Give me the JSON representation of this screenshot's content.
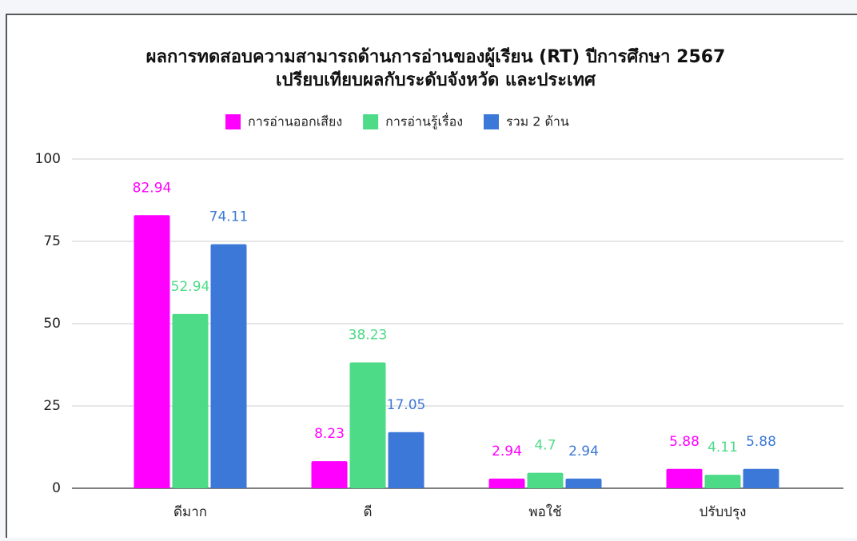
{
  "chart_data": {
    "type": "bar",
    "title": "ผลการทดสอบความสามารถด้านการอ่านของผู้เรียน (RT) ปีการศึกษา 2567",
    "subtitle": "เปรียบเทียบผลกับระดับจังหวัด และประเทศ",
    "categories": [
      "ดีมาก",
      "ดี",
      "พอใช้",
      "ปรับปรุง"
    ],
    "series": [
      {
        "name": "การอ่านออกเสียง",
        "color": "#ff00ff",
        "values": [
          82.94,
          8.23,
          2.94,
          5.88
        ]
      },
      {
        "name": "การอ่านรู้เรื่อง",
        "color": "#4ddb88",
        "values": [
          52.94,
          38.23,
          4.7,
          4.11
        ]
      },
      {
        "name": "รวม 2 ด้าน",
        "color": "#3c78d8",
        "values": [
          74.11,
          17.05,
          2.94,
          5.88
        ]
      }
    ],
    "ylim": [
      0,
      100
    ],
    "yticks": [
      0,
      25,
      50,
      75,
      100
    ],
    "grid": true,
    "legend": "top"
  }
}
